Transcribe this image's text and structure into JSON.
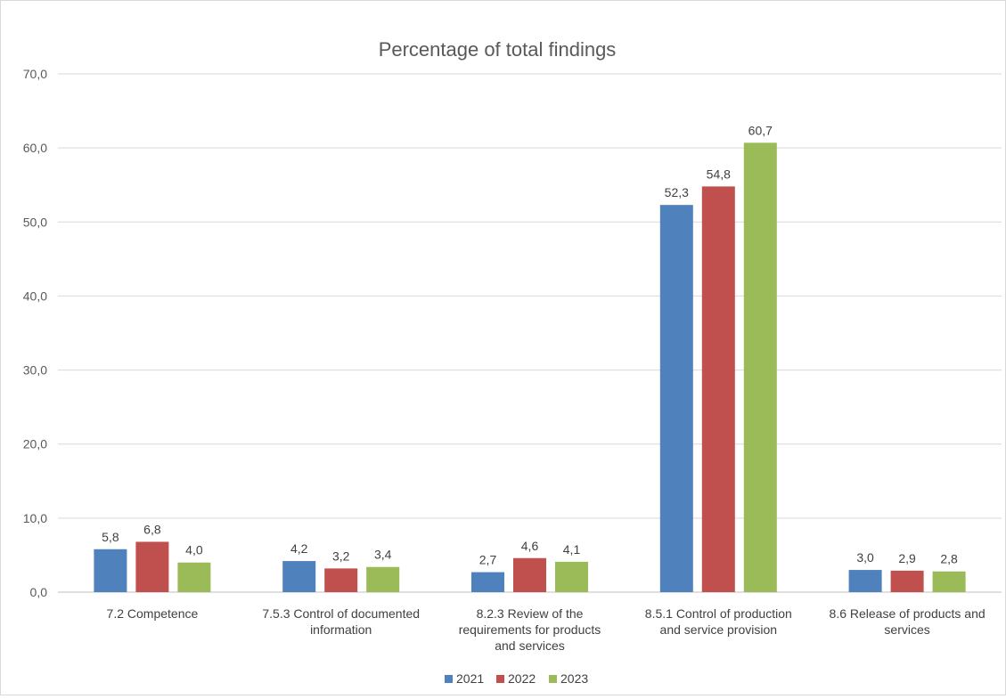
{
  "chart_data": {
    "type": "bar",
    "title": "Percentage of total findings",
    "xlabel": "",
    "ylabel": "",
    "ylim": [
      0,
      70
    ],
    "yticks": [
      0,
      10,
      20,
      30,
      40,
      50,
      60,
      70
    ],
    "ytick_labels": [
      "0,0",
      "10,0",
      "20,0",
      "30,0",
      "40,0",
      "50,0",
      "60,0",
      "70,0"
    ],
    "grid": true,
    "legend_position": "bottom",
    "categories": [
      [
        "7.2 Competence"
      ],
      [
        "7.5.3 Control of documented",
        "information"
      ],
      [
        "8.2.3 Review of the",
        "requirements for products",
        "and services"
      ],
      [
        "8.5.1 Control of production",
        "and service provision"
      ],
      [
        "8.6 Release of products and",
        "services"
      ]
    ],
    "series": [
      {
        "name": "2021",
        "color": "#4f81bd",
        "values": [
          5.8,
          4.2,
          2.7,
          52.3,
          3.0
        ],
        "labels": [
          "5,8",
          "4,2",
          "2,7",
          "52,3",
          "3,0"
        ]
      },
      {
        "name": "2022",
        "color": "#c0504d",
        "values": [
          6.8,
          3.2,
          4.6,
          54.8,
          2.9
        ],
        "labels": [
          "6,8",
          "3,2",
          "4,6",
          "54,8",
          "2,9"
        ]
      },
      {
        "name": "2023",
        "color": "#9bbb59",
        "values": [
          4.0,
          3.4,
          4.1,
          60.7,
          2.8
        ],
        "labels": [
          "4,0",
          "3,4",
          "4,1",
          "60,7",
          "2,8"
        ]
      }
    ]
  }
}
